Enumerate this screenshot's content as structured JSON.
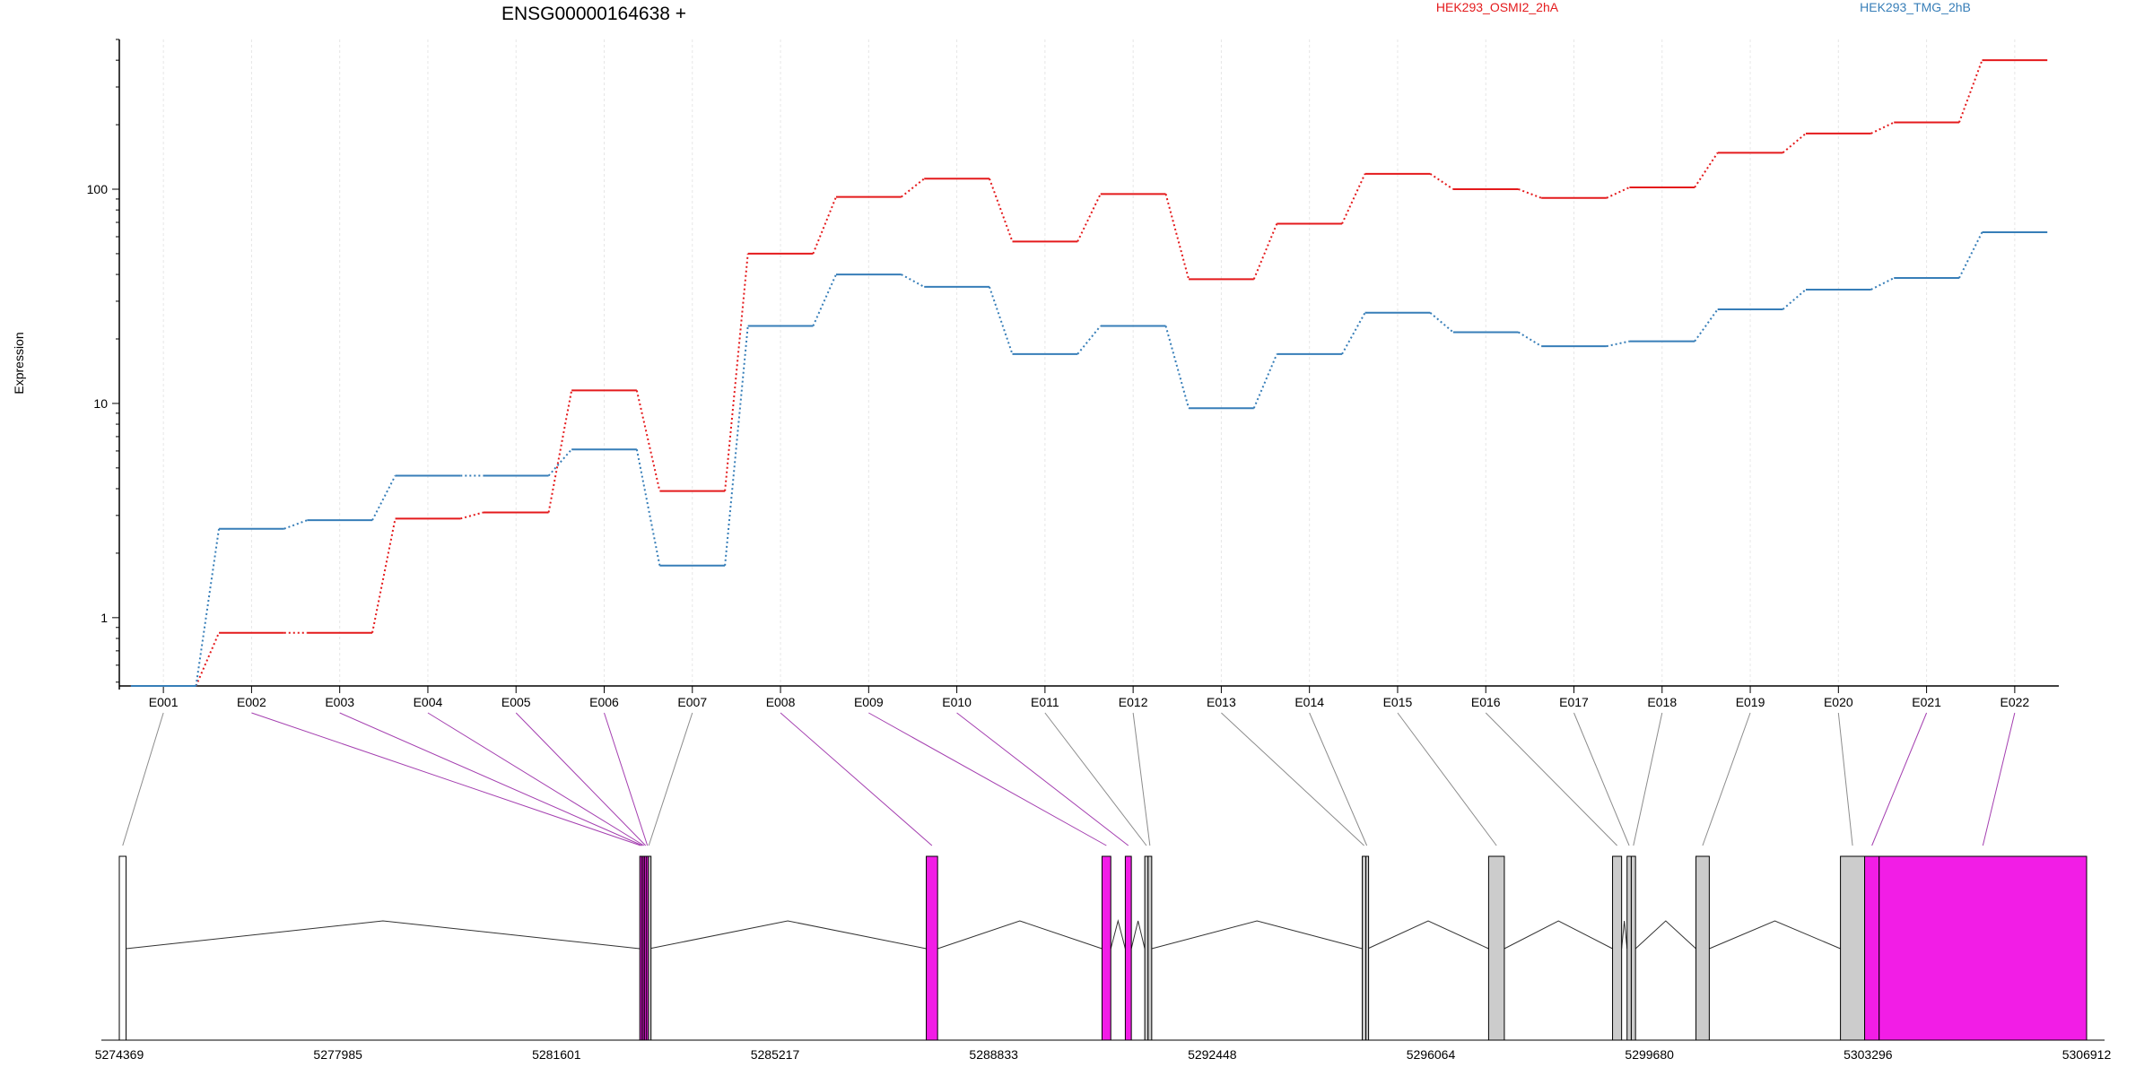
{
  "chart_data": {
    "type": "line",
    "title": "ENSG00000164638 +",
    "ylabel": "Expression",
    "xlabel": "",
    "yscale": "log",
    "ylim": [
      0.48,
      500
    ],
    "yticks": [
      1,
      10,
      100
    ],
    "ytick_labels": [
      "1",
      "10",
      "100"
    ],
    "grid": "vertical",
    "legend_placement": "top",
    "categories": [
      "E001",
      "E002",
      "E003",
      "E004",
      "E005",
      "E006",
      "E007",
      "E008",
      "E009",
      "E010",
      "E011",
      "E012",
      "E013",
      "E014",
      "E015",
      "E016",
      "E017",
      "E018",
      "E019",
      "E020",
      "E021",
      "E022"
    ],
    "series": [
      {
        "name": "HEK293_OSMI2_2hA",
        "color": "#e41a1c",
        "values": [
          0.48,
          0.85,
          0.85,
          2.9,
          3.1,
          11.5,
          3.9,
          50,
          92,
          112,
          57,
          95,
          38,
          69,
          118,
          100,
          91,
          102,
          148,
          182,
          205,
          400
        ]
      },
      {
        "name": "HEK293_TMG_2hB",
        "color": "#377eb8",
        "values": [
          0.48,
          2.6,
          2.85,
          4.6,
          4.6,
          6.1,
          1.75,
          23,
          40,
          35,
          17,
          23,
          9.5,
          17,
          26.5,
          21.5,
          18.5,
          19.5,
          27.5,
          34,
          38.5,
          63
        ]
      }
    ],
    "gene_model": {
      "coordinate_labels": [
        "5274369",
        "5277985",
        "5281601",
        "5285217",
        "5288833",
        "5292448",
        "5296064",
        "5299680",
        "5303296",
        "5306912"
      ],
      "range": [
        5274369,
        5306912
      ],
      "highlight_color": "#f21de6",
      "exon_color": "#cccccc",
      "exons": [
        {
          "id": "E001",
          "start": 5274369,
          "end": 5274481,
          "kind": "utr",
          "highlight": false
        },
        {
          "id": "E002",
          "start": 5282979,
          "end": 5283010,
          "kind": "exon",
          "highlight": true
        },
        {
          "id": "E003",
          "start": 5283010,
          "end": 5283035,
          "kind": "exon",
          "highlight": true
        },
        {
          "id": "E004",
          "start": 5283035,
          "end": 5283060,
          "kind": "exon",
          "highlight": true
        },
        {
          "id": "E005",
          "start": 5283060,
          "end": 5283090,
          "kind": "exon",
          "highlight": true
        },
        {
          "id": "E006",
          "start": 5283090,
          "end": 5283120,
          "kind": "exon",
          "highlight": true
        },
        {
          "id": "E007",
          "start": 5283120,
          "end": 5283135,
          "kind": "exon",
          "highlight": false
        },
        {
          "id": "E008",
          "start": 5287718,
          "end": 5287905,
          "kind": "exon",
          "highlight": true
        },
        {
          "id": "E009",
          "start": 5290625,
          "end": 5290770,
          "kind": "exon",
          "highlight": true
        },
        {
          "id": "E010",
          "start": 5291010,
          "end": 5291110,
          "kind": "exon",
          "highlight": true
        },
        {
          "id": "E011",
          "start": 5291332,
          "end": 5291387,
          "kind": "exon",
          "highlight": false
        },
        {
          "id": "E012",
          "start": 5291387,
          "end": 5291447,
          "kind": "exon",
          "highlight": false
        },
        {
          "id": "E013",
          "start": 5294930,
          "end": 5294990,
          "kind": "exon",
          "highlight": false
        },
        {
          "id": "E014",
          "start": 5294990,
          "end": 5295020,
          "kind": "exon",
          "highlight": false
        },
        {
          "id": "E015",
          "start": 5297020,
          "end": 5297280,
          "kind": "exon",
          "highlight": false
        },
        {
          "id": "E016",
          "start": 5299070,
          "end": 5299220,
          "kind": "exon",
          "highlight": false
        },
        {
          "id": "E017",
          "start": 5299310,
          "end": 5299380,
          "kind": "exon",
          "highlight": false
        },
        {
          "id": "E018",
          "start": 5299380,
          "end": 5299450,
          "kind": "exon",
          "highlight": false
        },
        {
          "id": "E019",
          "start": 5300450,
          "end": 5300670,
          "kind": "exon",
          "highlight": false
        },
        {
          "id": "E020",
          "start": 5302840,
          "end": 5303240,
          "kind": "exon",
          "highlight": false
        },
        {
          "id": "E021",
          "start": 5303240,
          "end": 5303480,
          "kind": "exon",
          "highlight": true
        },
        {
          "id": "E022",
          "start": 5303480,
          "end": 5306912,
          "kind": "exon",
          "highlight": true
        }
      ],
      "introns": [
        {
          "start": 5274481,
          "end": 5282979
        },
        {
          "start": 5283135,
          "end": 5287718
        },
        {
          "start": 5287905,
          "end": 5290625
        },
        {
          "start": 5290770,
          "end": 5291010
        },
        {
          "start": 5291110,
          "end": 5291332
        },
        {
          "start": 5291447,
          "end": 5294930
        },
        {
          "start": 5295020,
          "end": 5297020
        },
        {
          "start": 5297280,
          "end": 5299070
        },
        {
          "start": 5299220,
          "end": 5299310
        },
        {
          "start": 5299450,
          "end": 5300450
        },
        {
          "start": 5300670,
          "end": 5302840
        },
        {
          "start": 5303240,
          "end": 5303480
        }
      ]
    }
  }
}
